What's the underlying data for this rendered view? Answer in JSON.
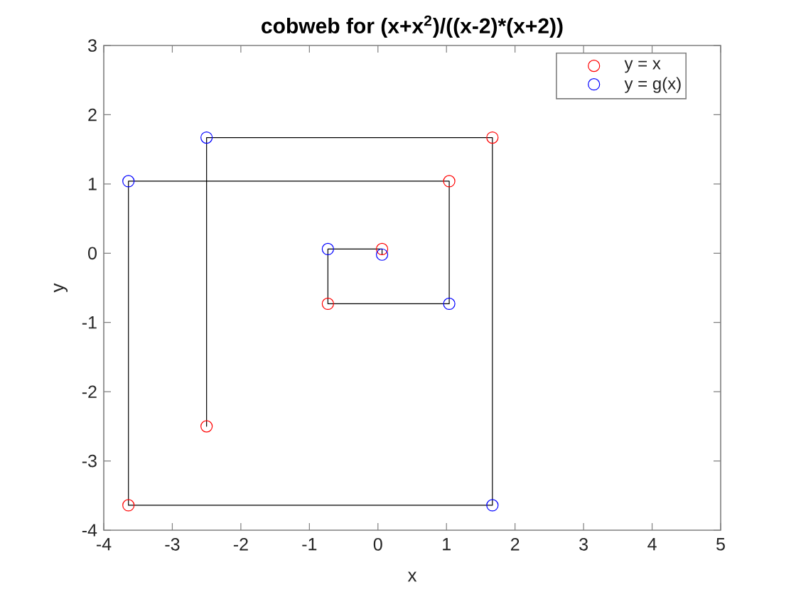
{
  "chart_data": {
    "type": "scatter",
    "title": "cobweb for (x+x$^{2}$)/((x-2)*(x+2))",
    "xlabel": "x",
    "ylabel": "y",
    "xlim": [
      -4,
      5
    ],
    "ylim": [
      -4,
      3
    ],
    "xticks": [
      -4,
      -3,
      -2,
      -1,
      0,
      1,
      2,
      3,
      4,
      5
    ],
    "yticks": [
      -4,
      -3,
      -2,
      -1,
      0,
      1,
      2,
      3
    ],
    "grid": false,
    "legend": "top right",
    "series": [
      {
        "type": "line",
        "color": "#000000",
        "line_style": "solid",
        "x": [
          -2.5,
          -2.5,
          1.67,
          1.67,
          -3.64,
          -3.64,
          1.04,
          1.04,
          -0.73,
          -0.73,
          0.06,
          0.06
        ],
        "values": [
          -2.5,
          1.67,
          1.67,
          -3.64,
          -3.64,
          1.04,
          1.04,
          -0.73,
          -0.73,
          0.06,
          0.06,
          -0.02
        ]
      },
      {
        "name": "y = x",
        "color": "#ff0000",
        "marker": "circle",
        "x": [
          -2.5,
          1.67,
          -3.64,
          1.04,
          -0.73,
          0.06
        ],
        "values": [
          -2.5,
          1.67,
          -3.64,
          1.04,
          -0.73,
          0.06
        ]
      },
      {
        "name": "y = g(x)",
        "color": "#0000ff",
        "marker": "circle",
        "x": [
          -2.5,
          1.67,
          -3.64,
          1.04,
          -0.73,
          0.06
        ],
        "values": [
          1.67,
          -3.64,
          1.04,
          -0.73,
          0.06,
          -0.02
        ]
      }
    ]
  }
}
